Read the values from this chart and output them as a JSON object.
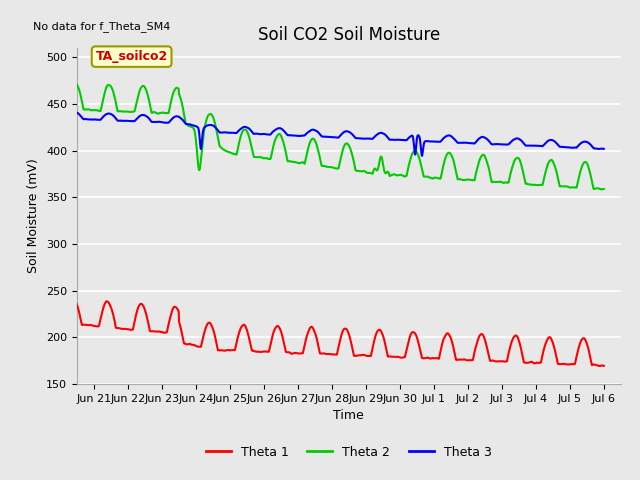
{
  "title": "Soil CO2 Soil Moisture",
  "ylabel": "Soil Moisture (mV)",
  "xlabel": "Time",
  "no_data_text": "No data for f_Theta_SM4",
  "annotation_text": "TA_soilco2",
  "ylim": [
    150,
    510
  ],
  "yticks": [
    150,
    200,
    250,
    300,
    350,
    400,
    450,
    500
  ],
  "x_tick_labels": [
    "Jun 21",
    "Jun 22",
    "Jun 23",
    "Jun 24",
    "Jun 25",
    "Jun 26",
    "Jun 27",
    "Jun 28",
    "Jun 29",
    "Jun 30",
    "Jul 1",
    "Jul 2",
    "Jul 3",
    "Jul 4",
    "Jul 5",
    "Jul 6"
  ],
  "background_color": "#e8e8e8",
  "grid_color": "#ffffff",
  "legend_colors": [
    "#ff0000",
    "#00cc00",
    "#0000ff"
  ],
  "title_fontsize": 12,
  "label_fontsize": 9,
  "tick_fontsize": 8,
  "annotation_color": "#cc0000",
  "annotation_bg": "#ffffcc",
  "annotation_edge": "#999900"
}
